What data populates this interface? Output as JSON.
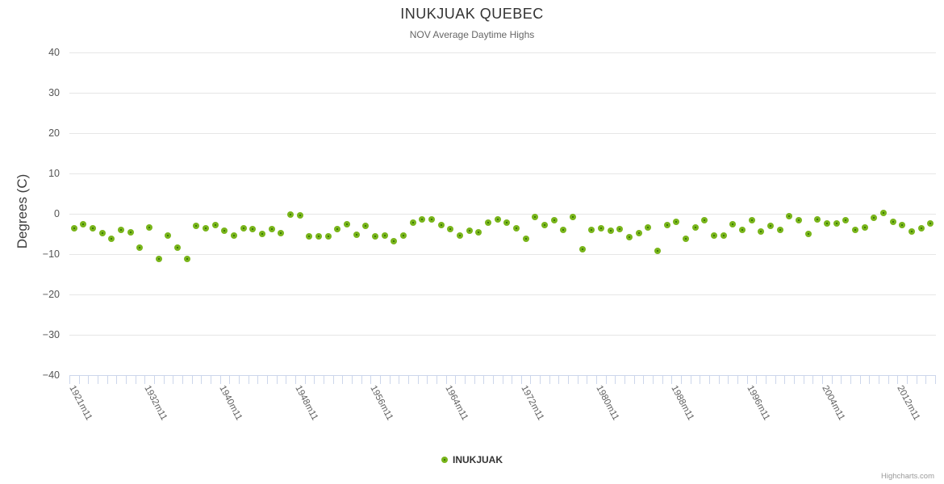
{
  "header": {
    "title": "INUKJUAK QUEBEC",
    "subtitle": "NOV Average Daytime Highs"
  },
  "legend": {
    "label": "INUKJUAK"
  },
  "credits": {
    "label": "Highcharts.com"
  },
  "colors": {
    "marker_outer": "#79b51b",
    "marker_center": "#3a7a07",
    "gridline": "#e6e6e6",
    "axis_line": "#ccd6eb",
    "title_text": "#333333",
    "subtitle_text": "#666666",
    "axis_label_text": "#606060"
  },
  "chart_data": {
    "type": "scatter",
    "title": "INUKJUAK QUEBEC",
    "subtitle": "NOV Average Daytime Highs",
    "xlabel": "",
    "ylabel": "Degrees (C)",
    "ylim": [
      -40,
      40
    ],
    "grid": true,
    "legend_position": "bottom-center",
    "y_ticks": [
      {
        "value": 40,
        "label": "40"
      },
      {
        "value": 30,
        "label": "30"
      },
      {
        "value": 20,
        "label": "20"
      },
      {
        "value": 10,
        "label": "10"
      },
      {
        "value": 0,
        "label": "0"
      },
      {
        "value": -10,
        "label": "−10"
      },
      {
        "value": -20,
        "label": "−20"
      },
      {
        "value": -30,
        "label": "−30"
      },
      {
        "value": -40,
        "label": "−40"
      }
    ],
    "x_tick_labels": [
      {
        "index": 0,
        "label": "1921m11"
      },
      {
        "index": 8,
        "label": "1932m11"
      },
      {
        "index": 16,
        "label": "1940m11"
      },
      {
        "index": 24,
        "label": "1948m11"
      },
      {
        "index": 32,
        "label": "1956m11"
      },
      {
        "index": 40,
        "label": "1964m11"
      },
      {
        "index": 48,
        "label": "1972m11"
      },
      {
        "index": 56,
        "label": "1980m11"
      },
      {
        "index": 64,
        "label": "1988m11"
      },
      {
        "index": 72,
        "label": "1996m11"
      },
      {
        "index": 80,
        "label": "2004m11"
      },
      {
        "index": 88,
        "label": "2012m11"
      }
    ],
    "n_points": 92,
    "series": [
      {
        "name": "INUKJUAK",
        "marker_color": "#79b51b",
        "marker_center_color": "#3a7a07",
        "values": [
          -3.6,
          -2.6,
          -3.6,
          -4.7,
          -6.1,
          -4.0,
          -4.5,
          -8.3,
          -3.4,
          -11.2,
          -5.4,
          -8.3,
          -11.2,
          -3.0,
          -3.6,
          -2.7,
          -4.1,
          -5.3,
          -3.5,
          -3.8,
          -4.9,
          -3.7,
          -4.7,
          -0.1,
          -0.3,
          -5.5,
          -5.6,
          -5.5,
          -3.7,
          -2.5,
          -5.1,
          -2.9,
          -5.5,
          -5.3,
          -6.7,
          -5.3,
          -2.1,
          -1.3,
          -1.4,
          -2.7,
          -3.8,
          -5.4,
          -4.2,
          -4.6,
          -2.1,
          -1.4,
          -2.1,
          -3.6,
          -6.1,
          -0.7,
          -2.7,
          -1.5,
          -3.9,
          -0.7,
          -8.7,
          -3.9,
          -3.6,
          -4.1,
          -3.7,
          -5.7,
          -4.7,
          -3.4,
          -9.2,
          -2.7,
          -1.9,
          -6.1,
          -3.4,
          -1.5,
          -5.4,
          -5.3,
          -2.5,
          -3.9,
          -1.6,
          -4.3,
          -2.9,
          -3.9,
          -0.6,
          -1.6,
          -4.9,
          -1.4,
          -2.3,
          -2.3,
          -1.5,
          -3.9,
          -3.4,
          -0.9,
          0.2,
          -1.9,
          -2.8,
          -4.4,
          -3.6,
          -2.3
        ]
      }
    ]
  }
}
